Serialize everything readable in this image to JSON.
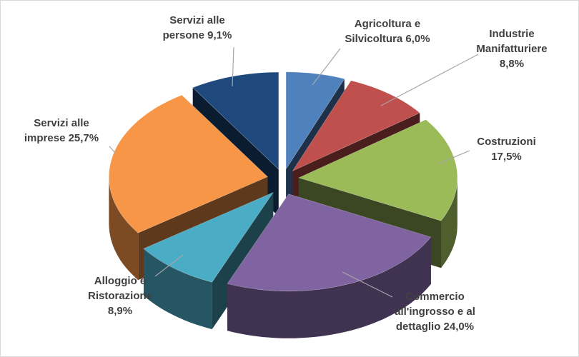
{
  "chart_data": {
    "type": "pie",
    "style": "exploded-3d",
    "slices": [
      {
        "label_lines": [
          "Agricoltura e",
          "Silvicoltura 6,0%"
        ],
        "value": 6.0,
        "color": "#4f81bd"
      },
      {
        "label_lines": [
          "Industrie",
          "Manifatturiere",
          "8,8%"
        ],
        "value": 8.8,
        "color": "#c0504d"
      },
      {
        "label_lines": [
          "Costruzioni",
          "17,5%"
        ],
        "value": 17.5,
        "color": "#9bbb59"
      },
      {
        "label_lines": [
          "Commercio",
          "all'ingrosso  e al",
          "dettaglio 24,0%"
        ],
        "value": 24.0,
        "color": "#8064a2"
      },
      {
        "label_lines": [
          "Alloggio e",
          "Ristorazione",
          "8,9%"
        ],
        "value": 8.9,
        "color": "#4bacc6"
      },
      {
        "label_lines": [
          "Servizi alle",
          "imprese 25,7%"
        ],
        "value": 25.7,
        "color": "#f79646"
      },
      {
        "label_lines": [
          "Servizi alle",
          "persone 9,1%"
        ],
        "value": 9.1,
        "color": "#1f497d"
      }
    ]
  }
}
